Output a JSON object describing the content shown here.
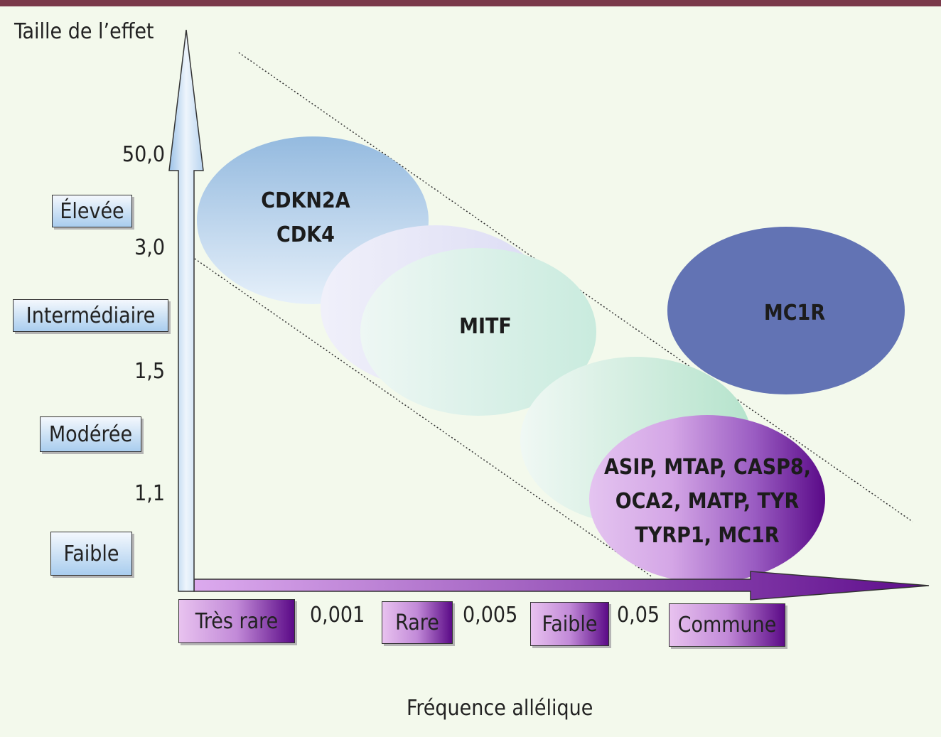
{
  "axes": {
    "y_title": "Taille de l’effet",
    "x_title": "Fréquence allélique",
    "y_ticks": [
      "50,0",
      "3,0",
      "1,5",
      "1,1"
    ],
    "x_ticks": [
      "0,001",
      "0,005",
      "0,05"
    ]
  },
  "effect_levels": [
    "Élevée",
    "Intermédiaire",
    "Modérée",
    "Faible"
  ],
  "frequency_levels": [
    "Très rare",
    "Rare",
    "Faible",
    "Commune"
  ],
  "gene_groups": {
    "high": [
      "CDKN2A",
      "CDK4"
    ],
    "intermediate": "MITF",
    "common_large": "MC1R",
    "common_small": [
      "ASIP, MTAP, CASP8,",
      "OCA2, MATP, TYR",
      "TYRP1, MC1R"
    ]
  },
  "colors": {
    "top_bar": "#7a3a4a",
    "background": "#f3f9ec",
    "mc1r_ellipse": "#6273b4",
    "x_arrow": "#9a3fc4",
    "y_arrow": "#c8def3"
  }
}
